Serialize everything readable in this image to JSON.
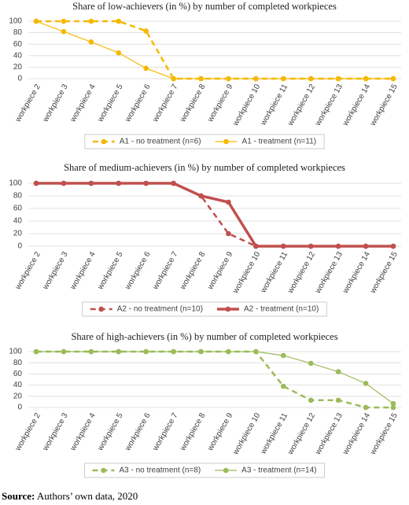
{
  "chart_data": [
    {
      "type": "line",
      "title": "Share of low-achievers (in %) by number of completed workpieces",
      "categories": [
        "workpiece 2",
        "workpiece 3",
        "workpiece 4",
        "workpiece 5",
        "workpiece 6",
        "workpiece 7",
        "workpiece 8",
        "workpiece 9",
        "workpiece 10",
        "workpiece 11",
        "workpiece 12",
        "workpiece 13",
        "workpiece 14",
        "workpiece 15"
      ],
      "series": [
        {
          "name": "A1 - no treatment (n=6)",
          "color": "#f5b800",
          "style": "dashed",
          "values": [
            100,
            100,
            100,
            100,
            83,
            0,
            0,
            0,
            0,
            0,
            0,
            0,
            0,
            0
          ]
        },
        {
          "name": "A1 - treatment (n=11)",
          "color": "#f5b800",
          "style": "thin",
          "values": [
            100,
            82,
            64,
            45,
            18,
            0,
            0,
            0,
            0,
            0,
            0,
            0,
            0,
            0
          ]
        }
      ],
      "ylim": [
        0,
        100
      ],
      "yticks": [
        0,
        20,
        40,
        60,
        80,
        100
      ],
      "grid": true,
      "legend": "bottom"
    },
    {
      "type": "line",
      "title": "Share of medium-achievers (in %) by number of completed workpieces",
      "categories": [
        "workpiece 2",
        "workpiece 3",
        "workpiece 4",
        "workpiece 5",
        "workpiece 6",
        "workpiece 7",
        "workpiece 8",
        "workpiece 9",
        "workpiece 10",
        "workpiece 11",
        "workpiece 12",
        "workpiece 13",
        "workpiece 14",
        "workpiece 15"
      ],
      "series": [
        {
          "name": "A2 - no treatment (n=10)",
          "color": "#c0504d",
          "style": "dashed",
          "values": [
            100,
            100,
            100,
            100,
            100,
            100,
            80,
            20,
            0,
            0,
            0,
            0,
            0,
            0
          ]
        },
        {
          "name": "A2 - treatment (n=10)",
          "color": "#c0504d",
          "style": "thick",
          "values": [
            100,
            100,
            100,
            100,
            100,
            100,
            80,
            70,
            0,
            0,
            0,
            0,
            0,
            0
          ]
        }
      ],
      "ylim": [
        0,
        100
      ],
      "yticks": [
        0,
        20,
        40,
        60,
        80,
        100
      ],
      "grid": true,
      "legend": "bottom"
    },
    {
      "type": "line",
      "title": "Share of high-achievers (in %) by number of completed workpieces",
      "categories": [
        "workpiece 2",
        "workpiece 3",
        "workpiece 4",
        "workpiece 5",
        "workpiece 6",
        "workpiece 7",
        "workpiece 8",
        "workpiece 9",
        "workpiece 10",
        "workpiece 11",
        "workpiece 12",
        "workpiece 13",
        "workpiece 14",
        "workpiece 15"
      ],
      "series": [
        {
          "name": "A3 - no treatment (n=8)",
          "color": "#9bbb59",
          "style": "dashed",
          "values": [
            100,
            100,
            100,
            100,
            100,
            100,
            100,
            100,
            100,
            38,
            13,
            13,
            0,
            0
          ]
        },
        {
          "name": "A3 - treatment (n=14)",
          "color": "#9bbb59",
          "style": "thin",
          "values": [
            100,
            100,
            100,
            100,
            100,
            100,
            100,
            100,
            100,
            93,
            79,
            64,
            43,
            7
          ]
        }
      ],
      "ylim": [
        0,
        100
      ],
      "yticks": [
        0,
        20,
        40,
        60,
        80,
        100
      ],
      "grid": true,
      "legend": "bottom"
    }
  ],
  "source": {
    "label": "Source:",
    "text": "Authors’ own data, 2020"
  }
}
